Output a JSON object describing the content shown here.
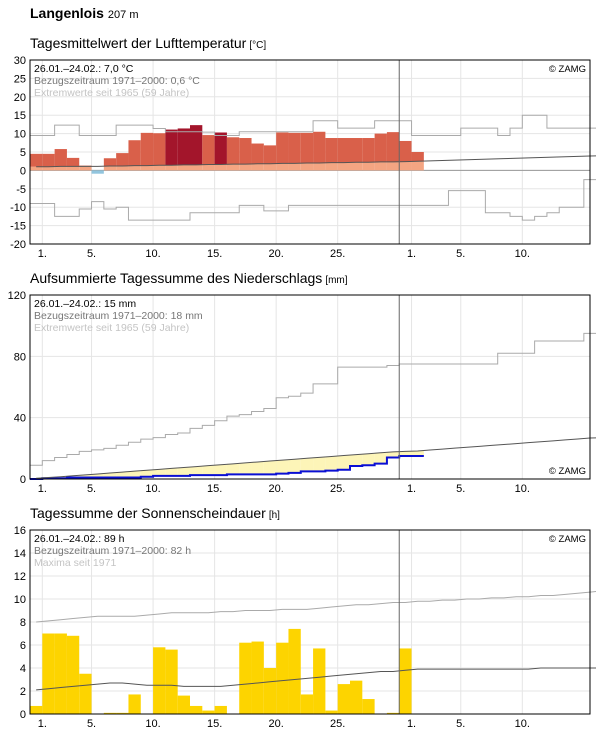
{
  "station": {
    "name": "Langenlois",
    "altitude": "207 m"
  },
  "copyright": "© ZAMG",
  "x_ticks": [
    "1.",
    "5.",
    "10.",
    "15.",
    "20.",
    "25.",
    "1.",
    "5.",
    "10."
  ],
  "panels": [
    {
      "title": "Tagesmittelwert der Lufttemperatur",
      "unit": "[°C]",
      "info": [
        "26.01.–24.02.: 7,0 °C",
        "Bezugszeitraum 1971–2000: 0,6 °C",
        "Extremwerte seit 1965 (59 Jahre)"
      ],
      "y_ticks": [
        "30",
        "25",
        "20",
        "15",
        "10",
        "5",
        "0",
        "-5",
        "-10",
        "-15",
        "-20"
      ]
    },
    {
      "title": "Aufsummierte Tagessumme des Niederschlags",
      "unit": "[mm]",
      "info": [
        "26.01.–24.02.: 15 mm",
        "Bezugszeitraum 1971–2000: 18 mm",
        "Extremwerte seit 1965 (59 Jahre)"
      ],
      "y_ticks": [
        "120",
        "80",
        "40",
        "0"
      ]
    },
    {
      "title": "Tagessumme der Sonnenscheindauer",
      "unit": "[h]",
      "info": [
        "26.01.–24.02.: 89 h",
        "Bezugszeitraum 1971–2000: 82 h",
        "Maxima seit 1971"
      ],
      "y_ticks": [
        "16",
        "14",
        "12",
        "10",
        "8",
        "6",
        "4",
        "2",
        "0"
      ]
    }
  ],
  "colors": {
    "temp_above_normal": "#d9604a",
    "temp_record_high": "#a3152b",
    "temp_normal_band": "#f4a582",
    "temp_below_zero": "#92c5de",
    "precip_deficit": "#fdf5b8",
    "precip_surplus": "#0a0fd4",
    "sunshine": "#fdd400",
    "normal_line": "#555555",
    "extreme_line": "#aaaaaa",
    "grid": "#e5e5e5",
    "today_line": "#666666"
  },
  "chart_data": [
    {
      "type": "bar",
      "title": "Tagesmittelwert der Lufttemperatur",
      "ylabel": "[°C]",
      "ylim": [
        -20,
        30
      ],
      "x_range_days": [
        0,
        46
      ],
      "series": [
        {
          "name": "daily_mean",
          "values": [
            4.5,
            4.5,
            5.8,
            3.4,
            1.3,
            -0.9,
            3.3,
            4.7,
            8.2,
            10.2,
            10.1,
            11.1,
            11.4,
            12.3,
            9.6,
            10.3,
            9.0,
            8.8,
            7.3,
            6.8,
            10.3,
            10.2,
            10.2,
            10.5,
            8.8,
            8.8,
            8.8,
            8.8,
            10.0,
            10.4,
            8.0,
            5.0
          ]
        },
        {
          "name": "normal_mean",
          "values": [
            1.0,
            1.0,
            1.1,
            1.1,
            1.1,
            1.1,
            1.2,
            1.2,
            1.3,
            1.3,
            1.4,
            1.4,
            1.5,
            1.5,
            1.6,
            1.6,
            1.7,
            1.7,
            1.8,
            1.8,
            1.9,
            1.9,
            2.0,
            2.0,
            2.1,
            2.1,
            2.2,
            2.2,
            2.3,
            2.3,
            2.4,
            2.5,
            2.6,
            2.7,
            2.8,
            2.9,
            3.0,
            3.1,
            3.2,
            3.3,
            3.4,
            3.5,
            3.6,
            3.7,
            3.8,
            3.9,
            4.0
          ]
        },
        {
          "name": "record_max",
          "values": [
            9.5,
            9.5,
            12.3,
            12.3,
            9.5,
            9.5,
            9.5,
            12.3,
            12.3,
            12.3,
            11.4,
            10.5,
            10.5,
            10.5,
            10.4,
            9.5,
            9.5,
            10.5,
            10.5,
            10.5,
            10.5,
            10.5,
            10.5,
            13.5,
            13.5,
            11.5,
            11.5,
            11.5,
            13.5,
            13.5,
            13.5,
            9.5,
            9.5,
            9.5,
            9.5,
            11.5,
            11.5,
            11.5,
            9.5,
            11.5,
            15.0,
            15.0,
            11.5,
            11.5,
            11.5,
            11.5,
            11.5
          ]
        },
        {
          "name": "record_min",
          "values": [
            -9.0,
            -9.0,
            -12.5,
            -12.5,
            -10.5,
            -8.5,
            -10.5,
            -10.0,
            -13.5,
            -13.5,
            -13.5,
            -13.5,
            -13.5,
            -11.5,
            -11.5,
            -11.5,
            -11.5,
            -9.5,
            -9.5,
            -11.0,
            -11.0,
            -9.5,
            -9.5,
            -9.5,
            -9.5,
            -9.5,
            -9.5,
            -9.5,
            -9.5,
            -9.5,
            -9.5,
            -9.5,
            -9.5,
            -9.5,
            -5.5,
            -5.5,
            -5.5,
            -11.5,
            -11.5,
            -12.5,
            -13.5,
            -12.5,
            -11.5,
            -10.0,
            -10.0,
            -2.5,
            -2.5
          ]
        }
      ],
      "current_day_index": 31
    },
    {
      "type": "area",
      "title": "Aufsummierte Tagessumme des Niederschlags",
      "ylabel": "[mm]",
      "ylim": [
        0,
        120
      ],
      "x_range_days": [
        0,
        46
      ],
      "series": [
        {
          "name": "cumulative_precip",
          "values": [
            0,
            0.5,
            0.5,
            1.0,
            1.0,
            1.0,
            1.0,
            1.0,
            1.0,
            1.5,
            2.0,
            2.0,
            2.0,
            2.5,
            2.5,
            2.5,
            3.0,
            3.0,
            3.0,
            3.0,
            3.5,
            4.0,
            5.0,
            5.0,
            5.5,
            6.0,
            8.5,
            9.0,
            10.0,
            14.0,
            15.0,
            15.0
          ]
        },
        {
          "name": "normal_cumulative",
          "values": [
            0.5,
            1.0,
            1.5,
            2.1,
            2.7,
            3.3,
            3.9,
            4.5,
            5.1,
            5.7,
            6.3,
            6.9,
            7.5,
            8.1,
            8.7,
            9.3,
            9.9,
            10.5,
            11.1,
            11.7,
            12.3,
            12.9,
            13.5,
            14.1,
            14.7,
            15.3,
            15.9,
            16.5,
            17.1,
            17.7,
            18.0,
            18.3,
            18.9,
            19.5,
            20.1,
            20.7,
            21.3,
            21.9,
            22.5,
            23.1,
            23.7,
            24.3,
            24.9,
            25.5,
            26.1,
            26.7,
            27.0
          ]
        },
        {
          "name": "record_max_cumulative",
          "values": [
            9,
            12,
            14,
            16,
            18,
            19,
            20,
            22,
            24,
            26,
            27,
            29,
            30,
            33,
            35,
            38,
            41,
            42,
            44,
            46,
            53,
            54,
            56,
            62,
            62,
            73,
            73,
            73,
            73,
            74,
            75,
            75,
            75,
            75,
            75,
            75,
            75,
            75,
            82,
            82,
            82,
            90,
            90,
            90,
            90,
            95,
            95
          ]
        }
      ],
      "current_day_index": 31
    },
    {
      "type": "bar",
      "title": "Tagessumme der Sonnenscheindauer",
      "ylabel": "[h]",
      "ylim": [
        0,
        16
      ],
      "x_range_days": [
        0,
        46
      ],
      "series": [
        {
          "name": "daily_sunshine",
          "values": [
            0.7,
            7.0,
            7.0,
            6.8,
            3.5,
            0,
            0.1,
            0.1,
            1.7,
            0,
            5.8,
            5.6,
            1.6,
            0.7,
            0.3,
            0.7,
            0,
            6.2,
            6.3,
            4.0,
            6.2,
            7.4,
            1.7,
            5.7,
            0.3,
            2.6,
            2.9,
            1.3,
            0,
            0.1,
            5.7,
            0
          ]
        },
        {
          "name": "normal_sunshine",
          "values": [
            2.1,
            2.2,
            2.3,
            2.4,
            2.5,
            2.6,
            2.7,
            2.7,
            2.6,
            2.5,
            2.5,
            2.5,
            2.4,
            2.4,
            2.4,
            2.4,
            2.5,
            2.6,
            2.7,
            2.8,
            2.9,
            3.0,
            3.1,
            3.2,
            3.3,
            3.4,
            3.5,
            3.6,
            3.7,
            3.7,
            3.8,
            3.9,
            3.9,
            3.9,
            3.9,
            3.9,
            3.9,
            3.9,
            3.9,
            3.9,
            3.9,
            4.0,
            4.0,
            4.0,
            4.0,
            4.0,
            4.0
          ]
        },
        {
          "name": "record_max_sunshine",
          "values": [
            8.0,
            8.1,
            8.2,
            8.3,
            8.4,
            8.5,
            8.5,
            8.5,
            8.5,
            8.6,
            8.7,
            8.8,
            8.8,
            8.8,
            8.8,
            8.9,
            8.9,
            9.0,
            9.0,
            9.0,
            9.1,
            9.1,
            9.1,
            9.2,
            9.3,
            9.4,
            9.5,
            9.5,
            9.6,
            9.7,
            9.7,
            9.8,
            9.8,
            9.9,
            9.9,
            10.0,
            10.0,
            10.1,
            10.1,
            10.2,
            10.2,
            10.3,
            10.3,
            10.4,
            10.5,
            10.6,
            10.7
          ]
        }
      ],
      "current_day_index": 31
    }
  ]
}
